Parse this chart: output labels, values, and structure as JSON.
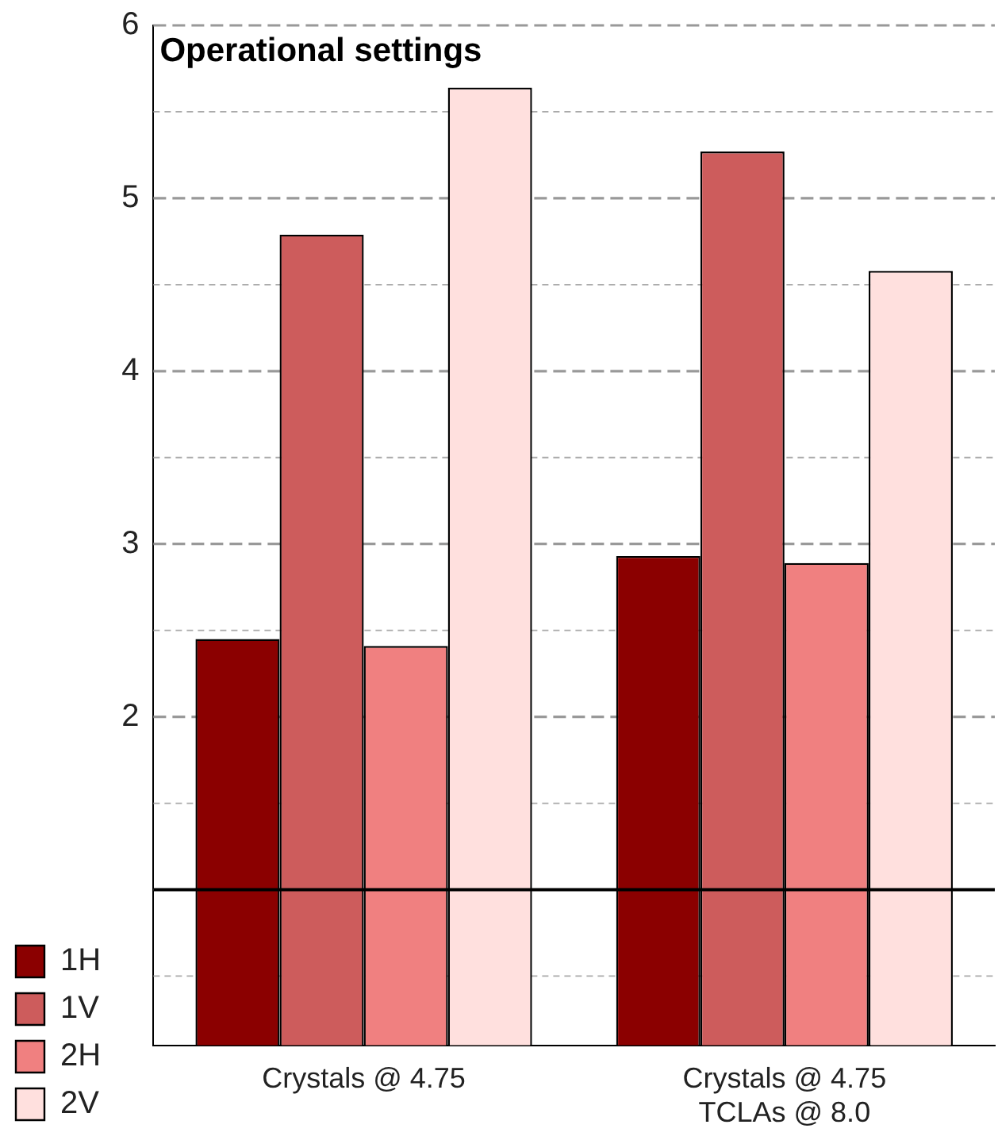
{
  "chart_data": {
    "type": "bar",
    "title": "Operational settings",
    "categories": [
      "Crystals @ 4.75",
      "Crystals @ 4.75\nTCLAs @ 8.0"
    ],
    "series": [
      {
        "name": "1H",
        "color": "#8b0000",
        "values": [
          2.45,
          2.93
        ]
      },
      {
        "name": "1V",
        "color": "#cd5c5c",
        "values": [
          4.79,
          5.27
        ]
      },
      {
        "name": "2H",
        "color": "#f08080",
        "values": [
          2.41,
          2.89
        ]
      },
      {
        "name": "2V",
        "color": "#ffe0de",
        "values": [
          5.64,
          4.58
        ]
      }
    ],
    "ylim": [
      0.1,
      6
    ],
    "yticks": [
      {
        "value": 0.5,
        "label": null
      },
      {
        "value": 1,
        "label": null
      },
      {
        "value": 1.5,
        "label": null
      },
      2,
      {
        "value": 2.5,
        "label": null
      },
      3,
      {
        "value": 3.5,
        "label": null
      },
      4,
      {
        "value": 4.5,
        "label": null
      },
      5,
      {
        "value": 5.5,
        "label": null
      },
      6
    ],
    "ref_lines": [
      {
        "axis": "y",
        "value": 1,
        "color": "#000000"
      }
    ],
    "grid": "y",
    "legend": "bottom left"
  }
}
